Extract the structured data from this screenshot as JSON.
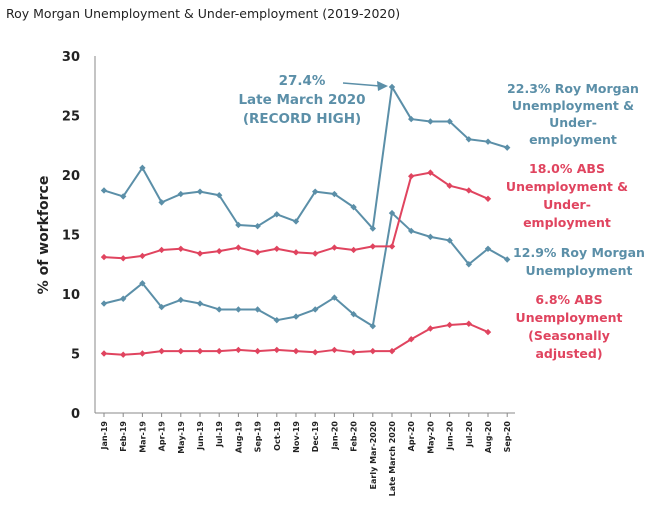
{
  "page_title": "Roy Morgan Unemployment & Under-employment (2019-2020)",
  "chart_data": {
    "type": "line",
    "title": "Roy Morgan Unemployment & Under-employment (2019-2020)",
    "ylabel": "% of workforce",
    "xlabel": "",
    "ylim": [
      0,
      30
    ],
    "yticks": [
      "0",
      "5",
      "10",
      "15",
      "20",
      "25",
      "30"
    ],
    "categories": [
      "Jan-19",
      "Feb-19",
      "Mar-19",
      "Apr-19",
      "May-19",
      "Jun-19",
      "Jul-19",
      "Aug-19",
      "Sep-19",
      "Oct-19",
      "Nov-19",
      "Dec-19",
      "Jan-20",
      "Feb-20",
      "Early Mar-2020",
      "Late March 2020",
      "Apr-20",
      "May-20",
      "Jun-20",
      "Jul-20",
      "Aug-20",
      "Sep-20"
    ],
    "series": [
      {
        "name": "Roy Morgan Unemployment & Under-employment",
        "color": "#5b8fa8",
        "values": [
          18.7,
          18.2,
          20.6,
          17.7,
          18.4,
          18.6,
          18.3,
          15.8,
          15.7,
          16.7,
          16.1,
          18.6,
          18.4,
          17.3,
          15.5,
          27.4,
          24.7,
          24.5,
          24.5,
          23.0,
          22.8,
          22.3
        ]
      },
      {
        "name": "Roy Morgan Unemployment",
        "color": "#5b8fa8",
        "values": [
          9.2,
          9.6,
          10.9,
          8.9,
          9.5,
          9.2,
          8.7,
          8.7,
          8.7,
          7.8,
          8.1,
          8.7,
          9.7,
          8.3,
          7.3,
          16.8,
          15.3,
          14.8,
          14.5,
          12.5,
          13.8,
          12.9
        ]
      },
      {
        "name": "ABS Unemployment & Under-employment",
        "color": "#e0445f",
        "values": [
          13.1,
          13.0,
          13.2,
          13.7,
          13.8,
          13.4,
          13.6,
          13.9,
          13.5,
          13.8,
          13.5,
          13.4,
          13.9,
          13.7,
          14.0,
          14.0,
          19.9,
          20.2,
          19.1,
          18.7,
          18.0,
          null
        ]
      },
      {
        "name": "ABS Unemployment (Seasonally adjusted)",
        "color": "#e0445f",
        "values": [
          5.0,
          4.9,
          5.0,
          5.2,
          5.2,
          5.2,
          5.2,
          5.3,
          5.2,
          5.3,
          5.2,
          5.1,
          5.3,
          5.1,
          5.2,
          5.2,
          6.2,
          7.1,
          7.4,
          7.5,
          6.8,
          null
        ]
      }
    ],
    "annotations": {
      "record": [
        "27.4%",
        "Late March 2020",
        "(RECORD HIGH)"
      ],
      "rm_under": [
        "22.3% Roy Morgan",
        "Unemployment &",
        "Under-",
        "employment"
      ],
      "abs_under": [
        "18.0% ABS",
        "Unemployment &",
        "Under-",
        "employment"
      ],
      "rm_unemp": [
        "12.9% Roy Morgan",
        "Unemployment"
      ],
      "abs_unemp": [
        "6.8% ABS",
        "Unemployment",
        "(Seasonally",
        "adjusted)"
      ]
    }
  }
}
